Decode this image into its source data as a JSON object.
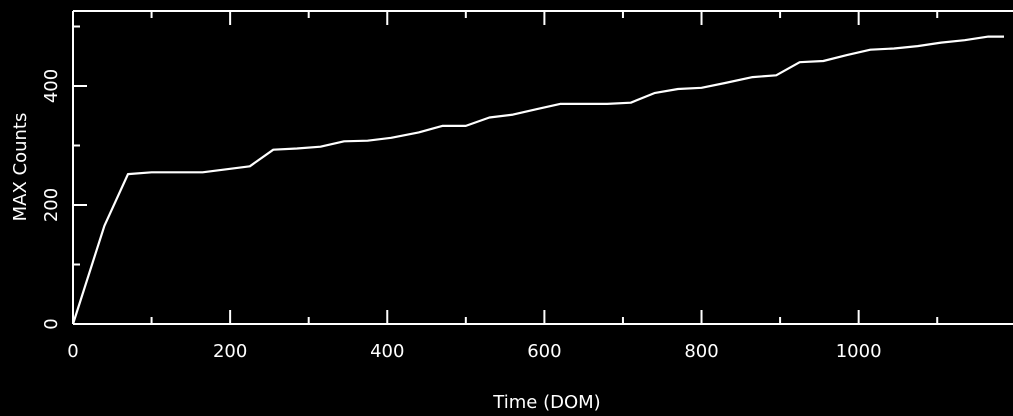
{
  "chart_data": {
    "type": "line",
    "title": "",
    "xlabel": "Time (DOM)",
    "ylabel": "MAX Counts",
    "xlim": [
      0,
      1185
    ],
    "ylim": [
      0,
      530
    ],
    "x_ticks": [
      0,
      200,
      400,
      600,
      800,
      1000
    ],
    "y_ticks": [
      0,
      200,
      400
    ],
    "x_tick_labels": [
      "0",
      "200",
      "400",
      "600",
      "800",
      "1000"
    ],
    "y_tick_labels": [
      "0",
      "200",
      "400"
    ],
    "grid": false,
    "colors": {
      "background": "#000000",
      "foreground": "#ffffff",
      "line": "#ffffff"
    },
    "series": [
      {
        "x": [
          0,
          40,
          70,
          100,
          130,
          165,
          195,
          225,
          255,
          285,
          315,
          345,
          375,
          405,
          440,
          470,
          500,
          530,
          560,
          590,
          620,
          650,
          680,
          710,
          740,
          770,
          800,
          830,
          865,
          895,
          925,
          955,
          985,
          1015,
          1045,
          1075,
          1105,
          1135,
          1165,
          1185
        ],
        "y": [
          0,
          165,
          252,
          255,
          255,
          255,
          260,
          265,
          293,
          295,
          298,
          307,
          308,
          313,
          322,
          333,
          333,
          347,
          352,
          361,
          370,
          370,
          370,
          372,
          388,
          395,
          397,
          405,
          415,
          418,
          440,
          442,
          452,
          461,
          463,
          467,
          473,
          477,
          483,
          483
        ]
      }
    ]
  }
}
